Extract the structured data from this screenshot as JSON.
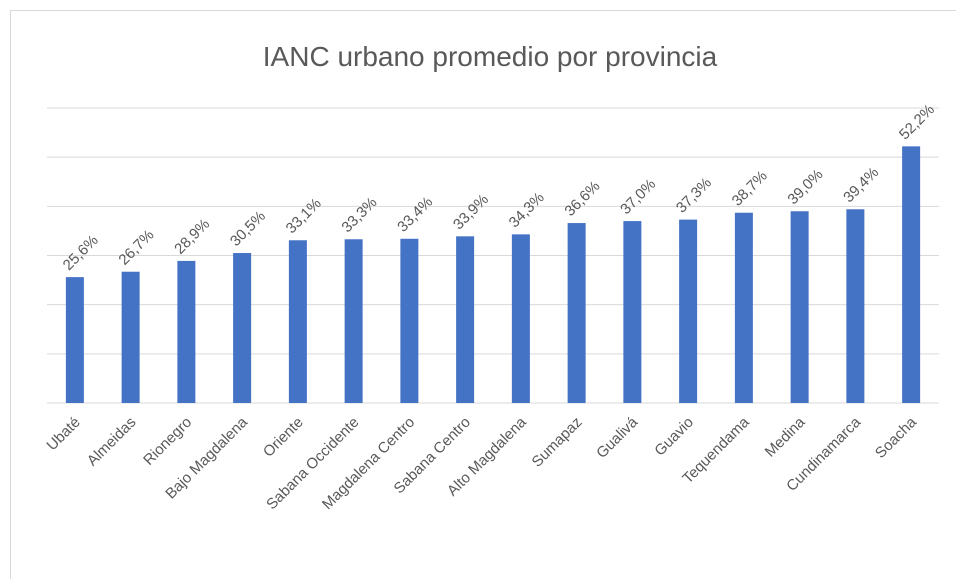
{
  "chart_data": {
    "type": "bar",
    "title": "IANC urbano promedio por provincia",
    "categories": [
      "Ubaté",
      "Almeidas",
      "Rionegro",
      "Bajo Magdalena",
      "Oriente",
      "Sabana Occidente",
      "Magdalena Centro",
      "Sabana Centro",
      "Alto Magdalena",
      "Sumapaz",
      "Gualivá",
      "Guavio",
      "Tequendama",
      "Medina",
      "Cundinamarca",
      "Soacha"
    ],
    "values": [
      25.6,
      26.7,
      28.9,
      30.5,
      33.1,
      33.3,
      33.4,
      33.9,
      34.3,
      36.6,
      37.0,
      37.3,
      38.7,
      39.0,
      39.4,
      52.2
    ],
    "value_labels": [
      "25,6%",
      "26,7%",
      "28,9%",
      "30,5%",
      "33,1%",
      "33,3%",
      "33,4%",
      "33,9%",
      "34,3%",
      "36,6%",
      "37,0%",
      "37,3%",
      "38,7%",
      "39,0%",
      "39,4%",
      "52,2%"
    ],
    "color": "#4472c4",
    "ylim": [
      0,
      60
    ],
    "yticks": [
      0,
      10,
      20,
      30,
      40,
      50,
      60
    ],
    "grid": true
  }
}
